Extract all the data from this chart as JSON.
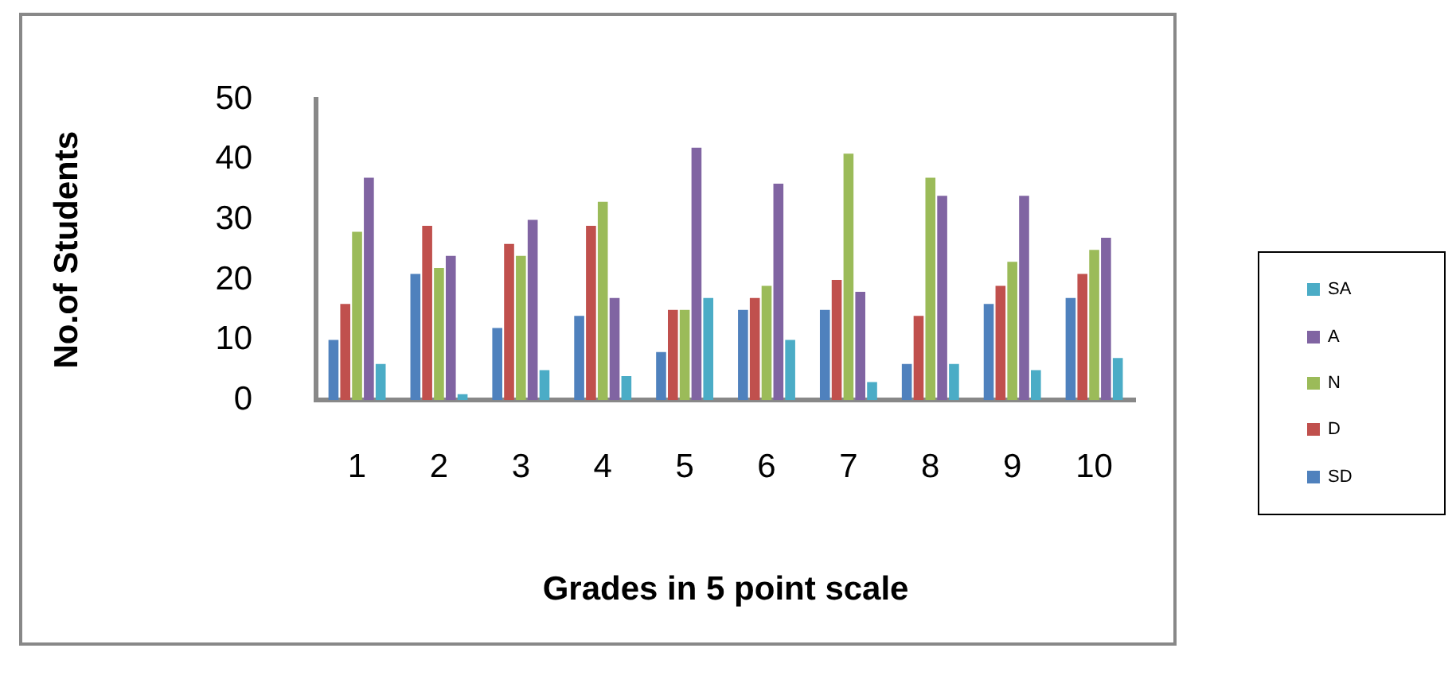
{
  "chart_data": {
    "type": "bar",
    "xlabel": "Grades in 5 point scale",
    "ylabel": "No.of Students",
    "categories": [
      "1",
      "2",
      "3",
      "4",
      "5",
      "6",
      "7",
      "8",
      "9",
      "10"
    ],
    "series": [
      {
        "name": "SD",
        "color": "#4f81bd",
        "values": [
          10,
          21,
          12,
          14,
          8,
          15,
          15,
          6,
          16,
          17
        ]
      },
      {
        "name": "D",
        "color": "#c0504d",
        "values": [
          16,
          29,
          26,
          29,
          15,
          17,
          20,
          14,
          19,
          21
        ]
      },
      {
        "name": "N",
        "color": "#9bbb59",
        "values": [
          28,
          22,
          24,
          33,
          15,
          19,
          41,
          37,
          23,
          25
        ]
      },
      {
        "name": "A",
        "color": "#8064a2",
        "values": [
          37,
          24,
          30,
          17,
          42,
          36,
          18,
          34,
          34,
          27
        ]
      },
      {
        "name": "SA",
        "color": "#4bacc6",
        "values": [
          6,
          1,
          5,
          4,
          17,
          10,
          3,
          6,
          5,
          7
        ]
      }
    ],
    "ylim": [
      0,
      50
    ],
    "yticks": [
      0,
      10,
      20,
      30,
      40,
      50
    ],
    "grid": false,
    "legend": "right"
  }
}
